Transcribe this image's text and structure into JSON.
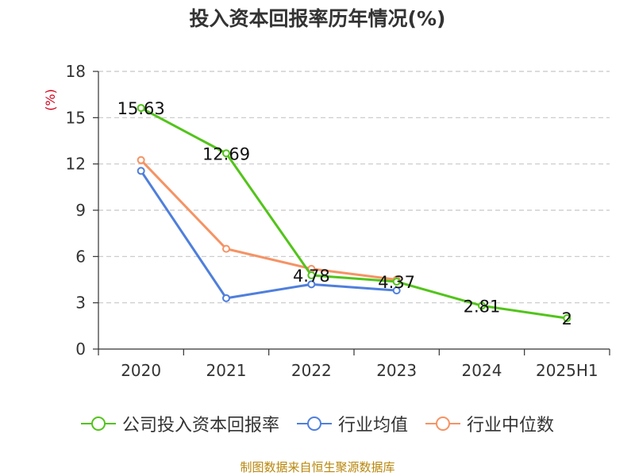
{
  "chart_data": {
    "type": "line",
    "title": "投入资本回报率历年情况(%)",
    "ylabel": "(%)",
    "ylim": [
      0,
      18
    ],
    "yticks": [
      0,
      3,
      6,
      9,
      12,
      15,
      18
    ],
    "grid": "horizontal dashed",
    "legend_position": "bottom",
    "categories": [
      "2020",
      "2021",
      "2022",
      "2023",
      "2024",
      "2025H1"
    ],
    "series": [
      {
        "name": "公司投入资本回报率",
        "color": "#52c41a",
        "values": [
          15.63,
          12.69,
          4.78,
          4.37,
          2.81,
          2
        ],
        "labels": [
          "15.63",
          "12.69",
          "4.78",
          "4.37",
          "2.81",
          "2"
        ]
      },
      {
        "name": "行业均值",
        "color": "#4f7fdc",
        "values": [
          11.55,
          3.3,
          4.2,
          3.8,
          null,
          null
        ]
      },
      {
        "name": "行业中位数",
        "color": "#f59364",
        "values": [
          12.25,
          6.5,
          5.2,
          4.5,
          null,
          null
        ]
      }
    ],
    "source": "制图数据来自恒生聚源数据库"
  }
}
